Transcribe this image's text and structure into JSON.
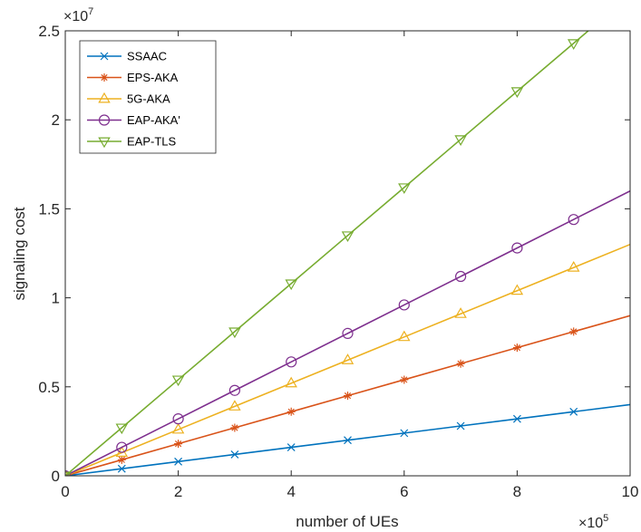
{
  "chart_data": {
    "type": "line",
    "xlabel": "number of UEs",
    "ylabel": "signaling cost",
    "x_multiplier": "×10",
    "x_exponent": "5",
    "y_multiplier": "×10",
    "y_exponent": "7",
    "xlim": [
      0,
      10
    ],
    "ylim": [
      0,
      2.5
    ],
    "x_ticks": [
      0,
      2,
      4,
      6,
      8,
      10
    ],
    "x_tick_labels": [
      "0",
      "2",
      "4",
      "6",
      "8",
      "10"
    ],
    "y_ticks": [
      0,
      0.5,
      1,
      1.5,
      2,
      2.5
    ],
    "y_tick_labels": [
      "0",
      "0.5",
      "1",
      "1.5",
      "2",
      "2.5"
    ],
    "grid": false,
    "legend_position": "top-left",
    "x": [
      0,
      1,
      2,
      3,
      4,
      5,
      6,
      7,
      8,
      9,
      10
    ],
    "marker_x": [
      0,
      1,
      2,
      3,
      4,
      5,
      6,
      7,
      8,
      9
    ],
    "series": [
      {
        "name": "SSAAC",
        "color": "#0072BD",
        "marker": "x",
        "values": [
          0,
          0.04,
          0.08,
          0.12,
          0.16,
          0.2,
          0.24,
          0.28,
          0.32,
          0.36,
          0.4
        ]
      },
      {
        "name": "EPS-AKA",
        "color": "#D95319",
        "marker": "asterisk",
        "values": [
          0,
          0.09,
          0.18,
          0.27,
          0.36,
          0.45,
          0.54,
          0.63,
          0.72,
          0.81,
          0.9
        ]
      },
      {
        "name": "5G-AKA",
        "color": "#EDB120",
        "marker": "triangle-up",
        "values": [
          0,
          0.13,
          0.26,
          0.39,
          0.52,
          0.65,
          0.78,
          0.91,
          1.04,
          1.17,
          1.3
        ]
      },
      {
        "name": "EAP-AKA'",
        "color": "#7E2F8E",
        "marker": "circle",
        "values": [
          0,
          0.16,
          0.32,
          0.48,
          0.64,
          0.8,
          0.96,
          1.12,
          1.28,
          1.44,
          1.6
        ]
      },
      {
        "name": "EAP-TLS",
        "color": "#77AC30",
        "marker": "triangle-down",
        "values": [
          0,
          0.27,
          0.54,
          0.81,
          1.08,
          1.35,
          1.62,
          1.89,
          2.16,
          2.43,
          2.7
        ]
      }
    ]
  }
}
